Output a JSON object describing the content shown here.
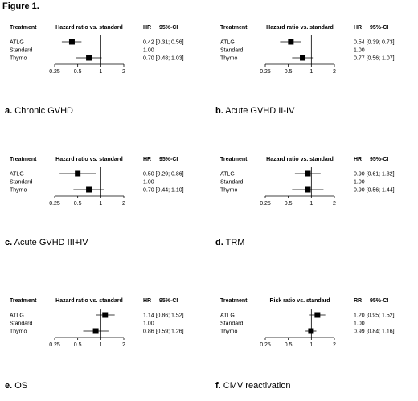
{
  "figure_title": "Figure 1.",
  "chart_data": [
    {
      "type": "forest",
      "caption_letter": "a.",
      "caption_text": "Chronic GVHD",
      "headers": {
        "treatment": "Treatment",
        "measure": "Hazard ratio vs. standard",
        "stat": "HR",
        "ci": "95%-CI"
      },
      "rows": [
        {
          "label": "ATLG",
          "estimate": 0.42,
          "lower": 0.31,
          "upper": 0.56,
          "text": "0.42 [0.31; 0.56]"
        },
        {
          "label": "Standard",
          "estimate": null,
          "lower": null,
          "upper": null,
          "text": "1.00"
        },
        {
          "label": "Thymo",
          "estimate": 0.7,
          "lower": 0.48,
          "upper": 1.03,
          "text": "0.70 [0.48; 1.03]"
        }
      ],
      "x_scale": "log",
      "xlim": [
        0.25,
        2
      ],
      "x_ticks": [
        "0.25",
        "0.5",
        "1",
        "2"
      ]
    },
    {
      "type": "forest",
      "caption_letter": "b.",
      "caption_text": "Acute GVHD II-IV",
      "headers": {
        "treatment": "Treatment",
        "measure": "Hazard ratio vs. standard",
        "stat": "HR",
        "ci": "95%-CI"
      },
      "rows": [
        {
          "label": "ATLG",
          "estimate": 0.54,
          "lower": 0.39,
          "upper": 0.73,
          "text": "0.54 [0.39; 0.73]"
        },
        {
          "label": "Standard",
          "estimate": null,
          "lower": null,
          "upper": null,
          "text": "1.00"
        },
        {
          "label": "Thymo",
          "estimate": 0.77,
          "lower": 0.56,
          "upper": 1.07,
          "text": "0.77 [0.56; 1.07]"
        }
      ],
      "x_scale": "log",
      "xlim": [
        0.25,
        2
      ],
      "x_ticks": [
        "0.25",
        "0.5",
        "1",
        "2"
      ]
    },
    {
      "type": "forest",
      "caption_letter": "c.",
      "caption_text": "Acute GVHD III+IV",
      "headers": {
        "treatment": "Treatment",
        "measure": "Hazard ratio vs. standard",
        "stat": "HR",
        "ci": "95%-CI"
      },
      "rows": [
        {
          "label": "ATLG",
          "estimate": 0.5,
          "lower": 0.29,
          "upper": 0.86,
          "text": "0.50 [0.29; 0.86]"
        },
        {
          "label": "Standard",
          "estimate": null,
          "lower": null,
          "upper": null,
          "text": "1.00"
        },
        {
          "label": "Thymo",
          "estimate": 0.7,
          "lower": 0.44,
          "upper": 1.1,
          "text": "0.70 [0.44; 1.10]"
        }
      ],
      "x_scale": "log",
      "xlim": [
        0.25,
        2
      ],
      "x_ticks": [
        "0.25",
        "0.5",
        "1",
        "2"
      ]
    },
    {
      "type": "forest",
      "caption_letter": "d.",
      "caption_text": "TRM",
      "headers": {
        "treatment": "Treatment",
        "measure": "Hazard ratio vs. standard",
        "stat": "HR",
        "ci": "95%-CI"
      },
      "rows": [
        {
          "label": "ATLG",
          "estimate": 0.9,
          "lower": 0.61,
          "upper": 1.32,
          "text": "0.90 [0.61; 1.32]"
        },
        {
          "label": "Standard",
          "estimate": null,
          "lower": null,
          "upper": null,
          "text": "1.00"
        },
        {
          "label": "Thymo",
          "estimate": 0.9,
          "lower": 0.56,
          "upper": 1.44,
          "text": "0.90 [0.56; 1.44]"
        }
      ],
      "x_scale": "log",
      "xlim": [
        0.25,
        2
      ],
      "x_ticks": [
        "0.25",
        "0.5",
        "1",
        "2"
      ]
    },
    {
      "type": "forest",
      "caption_letter": "e.",
      "caption_text": "OS",
      "headers": {
        "treatment": "Treatment",
        "measure": "Hazard ratio vs. standard",
        "stat": "HR",
        "ci": "95%-CI"
      },
      "rows": [
        {
          "label": "ATLG",
          "estimate": 1.14,
          "lower": 0.86,
          "upper": 1.52,
          "text": "1.14 [0.86; 1.52]"
        },
        {
          "label": "Standard",
          "estimate": null,
          "lower": null,
          "upper": null,
          "text": "1.00"
        },
        {
          "label": "Thymo",
          "estimate": 0.86,
          "lower": 0.59,
          "upper": 1.26,
          "text": "0.86 [0.59; 1.26]"
        }
      ],
      "x_scale": "log",
      "xlim": [
        0.25,
        2
      ],
      "x_ticks": [
        "0.25",
        "0.5",
        "1",
        "2"
      ]
    },
    {
      "type": "forest",
      "caption_letter": "f.",
      "caption_text": "CMV reactivation",
      "headers": {
        "treatment": "Treatment",
        "measure": "Risk ratio vs. standard",
        "stat": "RR",
        "ci": "95%-CI"
      },
      "rows": [
        {
          "label": "ATLG",
          "estimate": 1.2,
          "lower": 0.95,
          "upper": 1.52,
          "text": "1.20 [0.95; 1.52]"
        },
        {
          "label": "Standard",
          "estimate": null,
          "lower": null,
          "upper": null,
          "text": "1.00"
        },
        {
          "label": "Thymo",
          "estimate": 0.99,
          "lower": 0.84,
          "upper": 1.16,
          "text": "0.99 [0.84; 1.16]"
        }
      ],
      "x_scale": "log",
      "xlim": [
        0.25,
        2
      ],
      "x_ticks": [
        "0.25",
        "0.5",
        "1",
        "2"
      ]
    }
  ]
}
